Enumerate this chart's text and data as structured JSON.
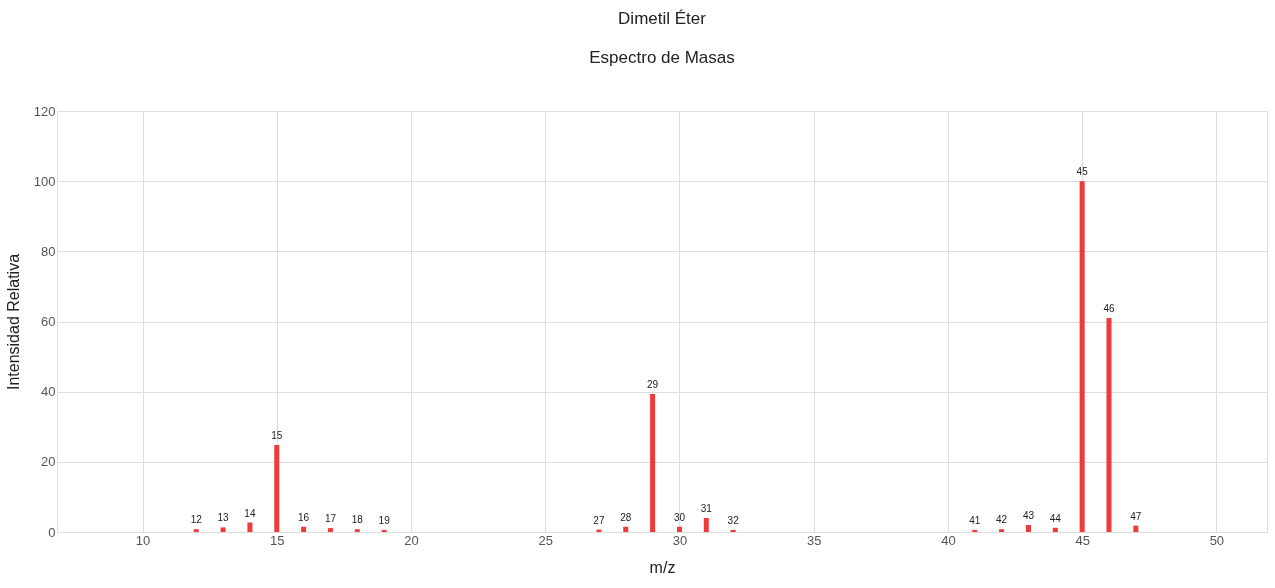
{
  "chart_data": {
    "type": "bar",
    "title": "Dimetil Éter",
    "subtitle": "Espectro de Masas",
    "xlabel": "m/z",
    "ylabel": "Intensidad Relativa",
    "x": [
      12,
      13,
      14,
      15,
      16,
      17,
      18,
      19,
      27,
      28,
      29,
      30,
      31,
      32,
      41,
      42,
      43,
      44,
      45,
      46,
      47
    ],
    "series": [
      {
        "color": "#ee3a3a",
        "values": [
          0.8,
          1.3,
          2.7,
          24.8,
          1.5,
          1.1,
          0.8,
          0.6,
          0.7,
          1.5,
          39.3,
          1.5,
          4,
          0.6,
          0.6,
          0.8,
          2,
          1.2,
          100,
          61,
          1.8
        ]
      }
    ],
    "annotations": [
      {
        "text": "12",
        "x": 12,
        "y": 0.8
      },
      {
        "text": "13",
        "x": 13,
        "y": 1.3
      },
      {
        "text": "14",
        "x": 14,
        "y": 2.7
      },
      {
        "text": "15",
        "x": 15,
        "y": 24.8
      },
      {
        "text": "16",
        "x": 16,
        "y": 1.5
      },
      {
        "text": "17",
        "x": 17,
        "y": 1.1
      },
      {
        "text": "18",
        "x": 18,
        "y": 0.8
      },
      {
        "text": "19",
        "x": 19,
        "y": 0.6
      },
      {
        "text": "27",
        "x": 27,
        "y": 0.7
      },
      {
        "text": "28",
        "x": 28,
        "y": 1.5
      },
      {
        "text": "29",
        "x": 29,
        "y": 39.3
      },
      {
        "text": "30",
        "x": 30,
        "y": 1.5
      },
      {
        "text": "31",
        "x": 31,
        "y": 4
      },
      {
        "text": "32",
        "x": 32,
        "y": 0.6
      },
      {
        "text": "41",
        "x": 41,
        "y": 0.6
      },
      {
        "text": "42",
        "x": 42,
        "y": 0.8
      },
      {
        "text": "43",
        "x": 43,
        "y": 2
      },
      {
        "text": "44",
        "x": 44,
        "y": 1.2
      },
      {
        "text": "45",
        "x": 45,
        "y": 100
      },
      {
        "text": "46",
        "x": 46,
        "y": 61
      },
      {
        "text": "47",
        "x": 47,
        "y": 1.8
      }
    ],
    "xlim": [
      7,
      51.7
    ],
    "xticks": [
      10,
      15,
      20,
      25,
      30,
      35,
      40,
      45,
      50
    ],
    "ylim": [
      0,
      120
    ],
    "yticks": [
      0,
      20,
      40,
      60,
      80,
      100,
      120
    ],
    "grid": true,
    "legend": false
  }
}
